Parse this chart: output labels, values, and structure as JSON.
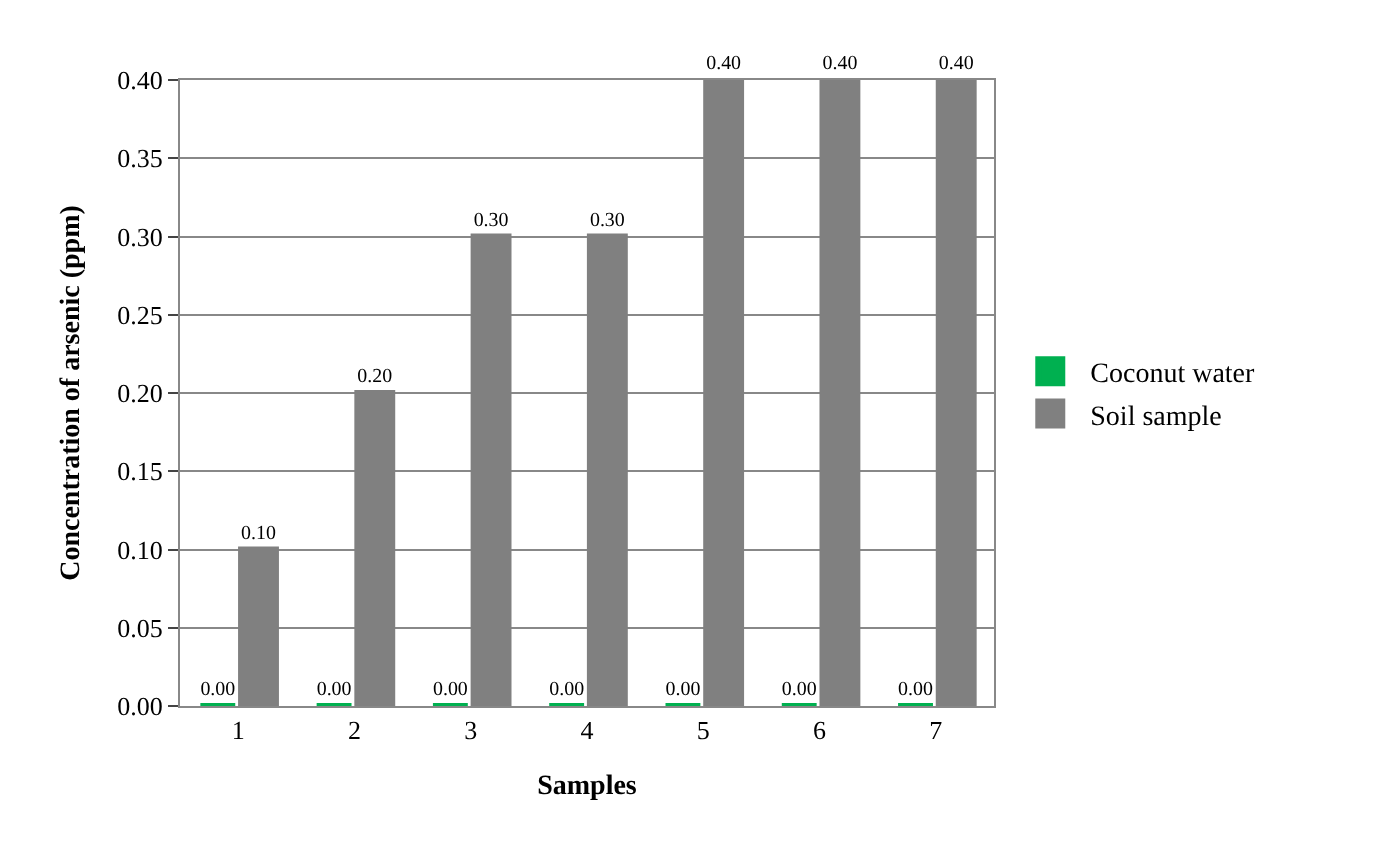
{
  "chart_data": {
    "type": "bar",
    "xlabel": "Samples",
    "ylabel": "Concentration of arsenic (ppm)",
    "categories": [
      "1",
      "2",
      "3",
      "4",
      "5",
      "6",
      "7"
    ],
    "series": [
      {
        "name": "Coconut water",
        "color": "#00b050",
        "values": [
          0,
          0,
          0,
          0,
          0,
          0,
          0
        ],
        "value_labels": [
          "0.00",
          "0.00",
          "0.00",
          "0.00",
          "0.00",
          "0.00",
          "0.00"
        ]
      },
      {
        "name": "Soil sample",
        "color": "#808080",
        "values": [
          0.1,
          0.2,
          0.3,
          0.3,
          0.4,
          0.4,
          0.4
        ],
        "value_labels": [
          "0.10",
          "0.20",
          "0.30",
          "0.30",
          "0.40",
          "0.40",
          "0.40"
        ]
      }
    ],
    "ylim": [
      0,
      0.4
    ],
    "yticks": [
      {
        "value": 0,
        "label": "0.00"
      },
      {
        "value": 0.05,
        "label": "0.05"
      },
      {
        "value": 0.1,
        "label": "0.10"
      },
      {
        "value": 0.15,
        "label": "0.15"
      },
      {
        "value": 0.2,
        "label": "0.20"
      },
      {
        "value": 0.25,
        "label": "0.25"
      },
      {
        "value": 0.3,
        "label": "0.30"
      },
      {
        "value": 0.35,
        "label": "0.35"
      },
      {
        "value": 0.4,
        "label": "0.40"
      }
    ],
    "grid": "y",
    "legend": "right"
  }
}
